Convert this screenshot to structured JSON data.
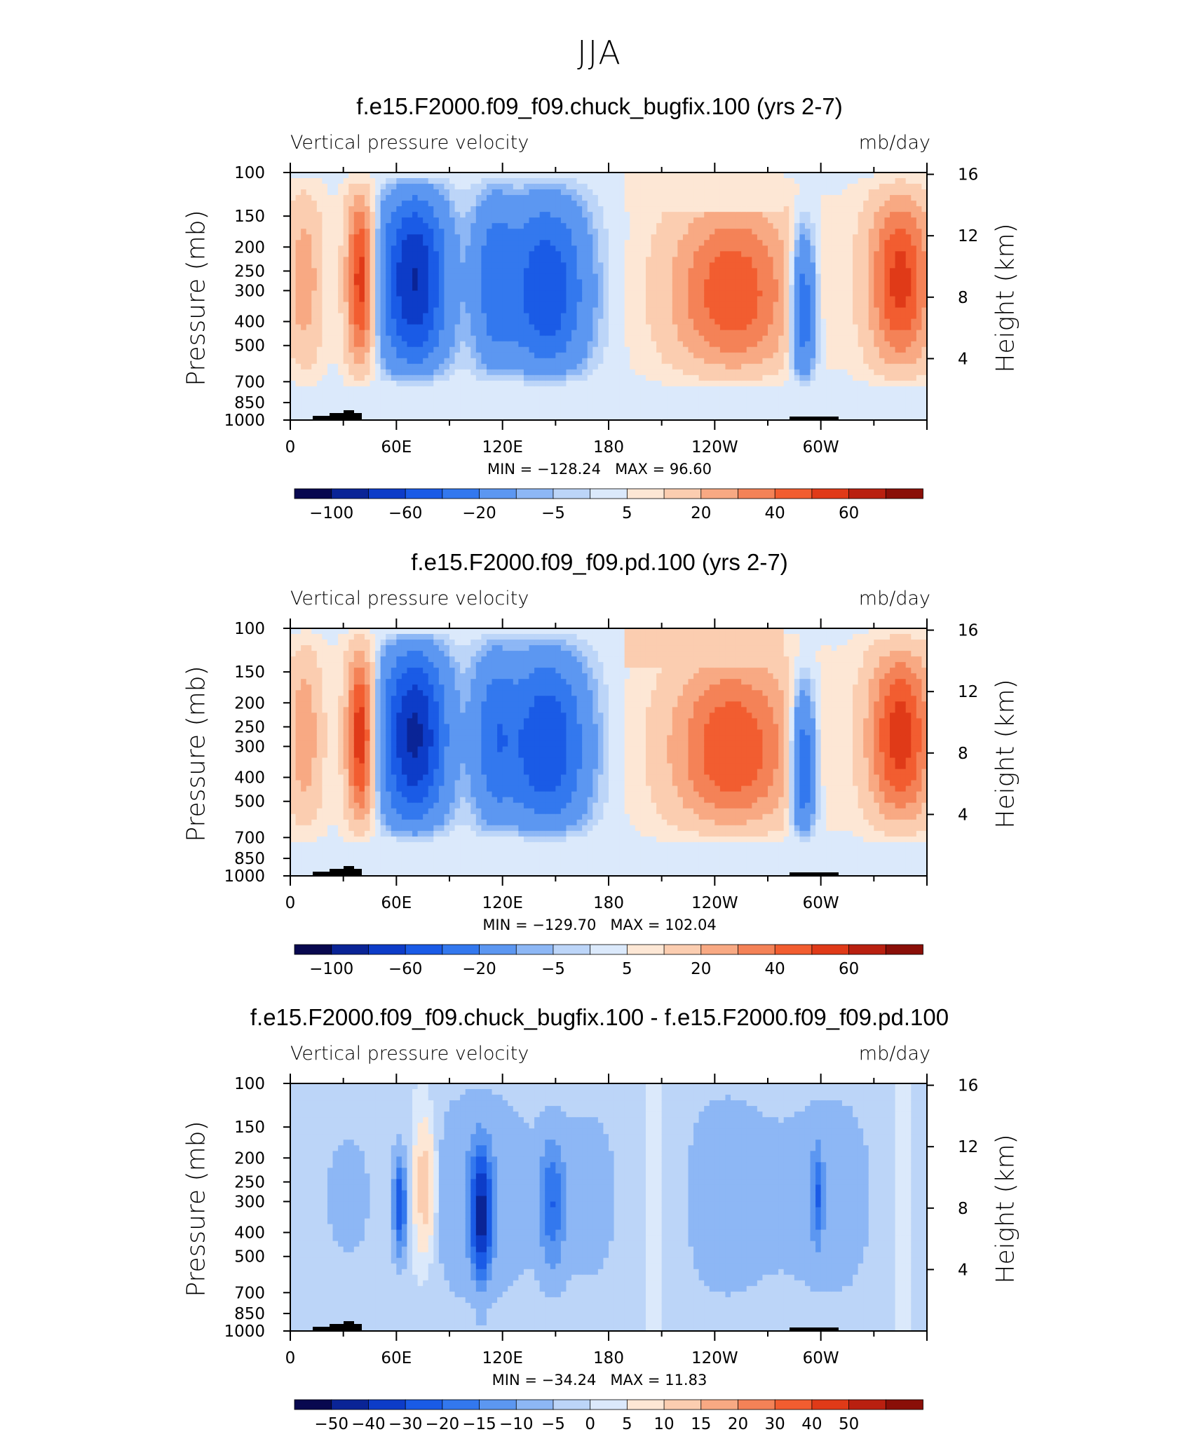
{
  "figure_title": "JJA",
  "palette_main": [
    "#08084f",
    "#0a2496",
    "#0d3cc8",
    "#1a5be6",
    "#3378ee",
    "#5c97f1",
    "#8db7f5",
    "#bcd5f8",
    "#dbe9fb",
    "#fde7d5",
    "#fbcdb0",
    "#f8a983",
    "#f48257",
    "#f25d30",
    "#e03a18",
    "#b92010",
    "#8a0f08"
  ],
  "colorbar_main_labels": [
    "−100",
    "−60",
    "−20",
    "−5",
    "5",
    "20",
    "40",
    "60"
  ],
  "colorbar_diff_labels": [
    "−50",
    "−40",
    "−30",
    "−20",
    "−15",
    "−10",
    "−5",
    "0",
    "5",
    "10",
    "15",
    "20",
    "30",
    "40",
    "50"
  ],
  "chart_data": [
    {
      "type": "heatmap",
      "title": "f.e15.F2000.f09_f09.chuck_bugfix.100 (yrs 2-7)",
      "variable": "Vertical pressure velocity",
      "units": "mb/day",
      "ylabel": "Pressure (mb)",
      "ylabel_right": "Height (km)",
      "x_ticks": [
        "0",
        "60E",
        "120E",
        "180",
        "120W",
        "60W"
      ],
      "y_ticks": [
        "100",
        "150",
        "200",
        "250",
        "300",
        "400",
        "500",
        "700",
        "850",
        "1000"
      ],
      "y_right_ticks": [
        "16",
        "12",
        "8",
        "4"
      ],
      "min_label": "MIN = −128.24",
      "max_label": "MAX =  96.60",
      "min": -128.24,
      "max": 96.6,
      "colorbar": "main"
    },
    {
      "type": "heatmap",
      "title": "f.e15.F2000.f09_f09.pd.100 (yrs 2-7)",
      "variable": "Vertical pressure velocity",
      "units": "mb/day",
      "ylabel": "Pressure (mb)",
      "ylabel_right": "Height (km)",
      "x_ticks": [
        "0",
        "60E",
        "120E",
        "180",
        "120W",
        "60W"
      ],
      "y_ticks": [
        "100",
        "150",
        "200",
        "250",
        "300",
        "400",
        "500",
        "700",
        "850",
        "1000"
      ],
      "y_right_ticks": [
        "16",
        "12",
        "8",
        "4"
      ],
      "min_label": "MIN = −129.70",
      "max_label": "MAX = 102.04",
      "min": -129.7,
      "max": 102.04,
      "colorbar": "main"
    },
    {
      "type": "heatmap",
      "title": "f.e15.F2000.f09_f09.chuck_bugfix.100 - f.e15.F2000.f09_f09.pd.100",
      "variable": "Vertical pressure velocity",
      "units": "mb/day",
      "ylabel": "Pressure (mb)",
      "ylabel_right": "Height (km)",
      "x_ticks": [
        "0",
        "60E",
        "120E",
        "180",
        "120W",
        "60W"
      ],
      "y_ticks": [
        "100",
        "150",
        "200",
        "250",
        "300",
        "400",
        "500",
        "700",
        "850",
        "1000"
      ],
      "y_right_ticks": [
        "16",
        "12",
        "8",
        "4"
      ],
      "min_label": "MIN = −34.24",
      "max_label": "MAX =  11.83",
      "min": -34.24,
      "max": 11.83,
      "colorbar": "diff"
    }
  ]
}
